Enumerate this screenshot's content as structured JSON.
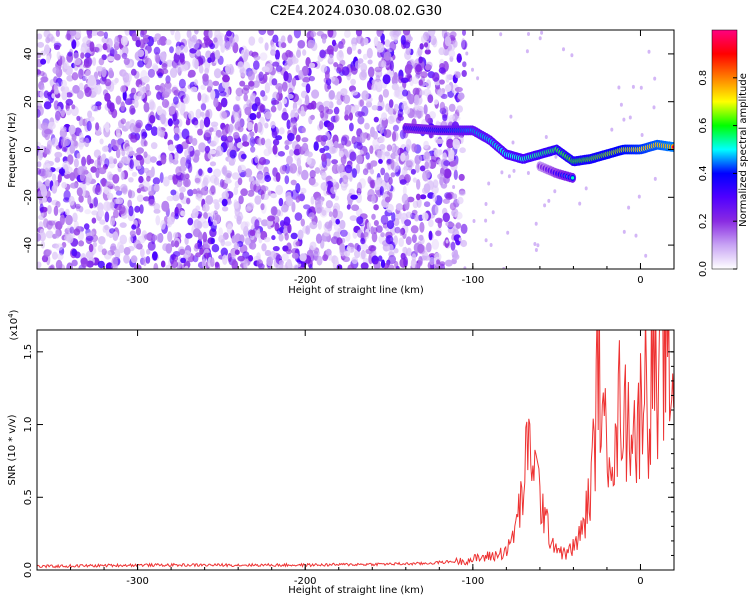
{
  "title": "C2E4.2024.030.08.02.G30",
  "chart_data": [
    {
      "type": "heatmap",
      "xlabel": "Height of straight line (km)",
      "ylabel": "Frequency (Hz)",
      "xlim": [
        -360,
        20
      ],
      "ylim": [
        -50,
        50
      ],
      "xticks": [
        -300,
        -200,
        -100,
        0
      ],
      "yticks": [
        -40,
        -20,
        0,
        20,
        40
      ],
      "colorbar": {
        "label": "Normalized spectral amplitude",
        "range": [
          0,
          1
        ],
        "ticks": [
          "0.0",
          "0.2",
          "0.4",
          "0.6",
          "0.8"
        ],
        "colors": [
          "#ffffff",
          "#c8a4f4",
          "#8a2be2",
          "#5000ff",
          "#0000ff",
          "#00ffff",
          "#00ff00",
          "#ffff00",
          "#ff8000",
          "#ff0000",
          "#ff0080"
        ]
      },
      "noise_region": {
        "x": [
          -360,
          -120
        ],
        "y": [
          -50,
          50
        ]
      },
      "dominant_track": {
        "x": [
          -140,
          -120,
          -100,
          -90,
          -80,
          -70,
          -60,
          -50,
          -40,
          -30,
          -20,
          -10,
          0,
          10,
          20
        ],
        "y": [
          9,
          8,
          8,
          4,
          -2,
          -4,
          -2,
          0,
          -5,
          -4,
          -2,
          0,
          0,
          2,
          1
        ]
      },
      "secondary_track": {
        "x": [
          -60,
          -50,
          -40
        ],
        "y": [
          -7,
          -10,
          -12
        ]
      }
    },
    {
      "type": "line",
      "xlabel": "Height of straight line (km)",
      "ylabel": "SNR (10 * v/v)",
      "y_multiplier": "(x10",
      "y_multiplier_exp": "4",
      "y_multiplier_close": ")",
      "xlim": [
        -360,
        20
      ],
      "ylim": [
        0,
        1.65
      ],
      "xticks": [
        -300,
        -200,
        -100,
        0
      ],
      "yticks": [
        "0.0",
        "0.5",
        "1.0",
        "1.5"
      ],
      "ytick_values": [
        0,
        0.5,
        1.0,
        1.5
      ],
      "series": [
        {
          "color": "#ee3333",
          "x": [
            -360,
            -300,
            -200,
            -130,
            -105,
            -95,
            -85,
            -78,
            -72,
            -68,
            -65,
            -62,
            -58,
            -55,
            -50,
            -45,
            -40,
            -35,
            -30,
            -27,
            -25,
            -22,
            -18,
            -15,
            -12,
            -8,
            -5,
            -2,
            2,
            5,
            8,
            10,
            12,
            15,
            18,
            20
          ],
          "y": [
            0.02,
            0.03,
            0.03,
            0.04,
            0.06,
            0.08,
            0.1,
            0.15,
            0.4,
            0.7,
            0.85,
            0.6,
            0.4,
            0.25,
            0.15,
            0.1,
            0.15,
            0.25,
            0.5,
            0.9,
            1.5,
            0.8,
            1.0,
            0.7,
            1.2,
            0.9,
            1.1,
            0.8,
            1.4,
            1.0,
            1.6,
            0.9,
            1.3,
            1.5,
            1.2,
            1.4
          ]
        }
      ]
    }
  ]
}
